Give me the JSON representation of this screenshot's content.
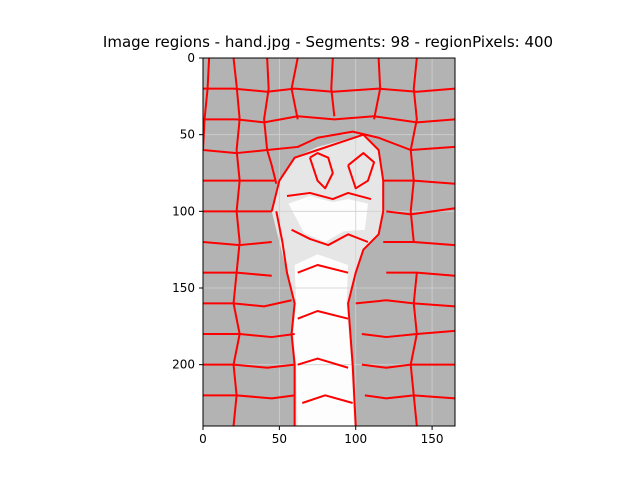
{
  "figure": {
    "title": "Image regions - hand.jpg - Segments: 98 - regionPixels: 400"
  },
  "chart_data": {
    "type": "heatmap",
    "title": "Image regions - hand.jpg - Segments: 98 - regionPixels: 400",
    "xlabel": "",
    "ylabel": "",
    "xlim": [
      0,
      165
    ],
    "ylim": [
      240,
      0
    ],
    "x_ticks": [
      "0",
      "50",
      "100",
      "150"
    ],
    "y_ticks": [
      "0",
      "50",
      "100",
      "150",
      "200"
    ],
    "grid": true,
    "colors": {
      "background_region": "#b3b3b3",
      "hand_region": "#e6e6e6",
      "bright_region": "#fdfdfd",
      "boundary": "#ff0000"
    },
    "boundaries": [
      [
        [
          4,
          0
        ],
        [
          3,
          20
        ],
        [
          1,
          40
        ],
        [
          0,
          60
        ]
      ],
      [
        [
          20,
          0
        ],
        [
          22,
          18
        ],
        [
          24,
          40
        ],
        [
          22,
          60
        ]
      ],
      [
        [
          42,
          0
        ],
        [
          43,
          20
        ],
        [
          40,
          40
        ],
        [
          42,
          60
        ]
      ],
      [
        [
          62,
          0
        ],
        [
          58,
          20
        ],
        [
          62,
          40
        ]
      ],
      [
        [
          85,
          0
        ],
        [
          84,
          20
        ],
        [
          86,
          38
        ]
      ],
      [
        [
          115,
          0
        ],
        [
          116,
          20
        ],
        [
          112,
          40
        ]
      ],
      [
        [
          140,
          0
        ],
        [
          138,
          20
        ],
        [
          140,
          40
        ],
        [
          136,
          60
        ]
      ],
      [
        [
          0,
          20
        ],
        [
          20,
          20
        ],
        [
          42,
          22
        ],
        [
          60,
          20
        ],
        [
          85,
          22
        ],
        [
          115,
          20
        ],
        [
          140,
          22
        ],
        [
          165,
          20
        ]
      ],
      [
        [
          0,
          40
        ],
        [
          22,
          40
        ],
        [
          40,
          42
        ],
        [
          62,
          38
        ],
        [
          86,
          40
        ],
        [
          112,
          38
        ],
        [
          140,
          42
        ],
        [
          165,
          40
        ]
      ],
      [
        [
          0,
          60
        ],
        [
          22,
          62
        ],
        [
          42,
          60
        ],
        [
          62,
          58
        ],
        [
          75,
          52
        ],
        [
          98,
          48
        ],
        [
          115,
          52
        ],
        [
          136,
          60
        ],
        [
          165,
          58
        ]
      ],
      [
        [
          22,
          60
        ],
        [
          24,
          80
        ],
        [
          22,
          100
        ],
        [
          24,
          120
        ],
        [
          22,
          140
        ]
      ],
      [
        [
          42,
          60
        ],
        [
          45,
          70
        ],
        [
          48,
          82
        ]
      ],
      [
        [
          136,
          60
        ],
        [
          138,
          80
        ],
        [
          136,
          100
        ],
        [
          138,
          120
        ]
      ],
      [
        [
          0,
          80
        ],
        [
          24,
          80
        ],
        [
          48,
          80
        ]
      ],
      [
        [
          118,
          80
        ],
        [
          138,
          80
        ],
        [
          165,
          82
        ]
      ],
      [
        [
          0,
          100
        ],
        [
          22,
          100
        ],
        [
          45,
          100
        ]
      ],
      [
        [
          120,
          100
        ],
        [
          136,
          102
        ],
        [
          165,
          98
        ]
      ],
      [
        [
          0,
          120
        ],
        [
          24,
          122
        ],
        [
          45,
          120
        ]
      ],
      [
        [
          118,
          120
        ],
        [
          138,
          120
        ],
        [
          165,
          122
        ]
      ],
      [
        [
          0,
          140
        ],
        [
          22,
          140
        ],
        [
          45,
          142
        ]
      ],
      [
        [
          120,
          140
        ],
        [
          140,
          140
        ],
        [
          165,
          142
        ]
      ],
      [
        [
          22,
          140
        ],
        [
          20,
          160
        ],
        [
          24,
          180
        ],
        [
          20,
          200
        ],
        [
          22,
          220
        ],
        [
          20,
          240
        ]
      ],
      [
        [
          140,
          140
        ],
        [
          138,
          160
        ],
        [
          140,
          180
        ],
        [
          136,
          200
        ],
        [
          138,
          220
        ],
        [
          140,
          240
        ]
      ],
      [
        [
          0,
          160
        ],
        [
          20,
          160
        ],
        [
          40,
          162
        ],
        [
          58,
          158
        ]
      ],
      [
        [
          100,
          160
        ],
        [
          120,
          158
        ],
        [
          138,
          160
        ],
        [
          165,
          162
        ]
      ],
      [
        [
          0,
          180
        ],
        [
          24,
          180
        ],
        [
          45,
          182
        ],
        [
          60,
          180
        ]
      ],
      [
        [
          104,
          180
        ],
        [
          120,
          182
        ],
        [
          140,
          180
        ],
        [
          165,
          178
        ]
      ],
      [
        [
          0,
          200
        ],
        [
          20,
          200
        ],
        [
          42,
          202
        ],
        [
          60,
          200
        ]
      ],
      [
        [
          104,
          200
        ],
        [
          120,
          202
        ],
        [
          136,
          200
        ],
        [
          165,
          200
        ]
      ],
      [
        [
          0,
          220
        ],
        [
          22,
          220
        ],
        [
          45,
          222
        ],
        [
          60,
          220
        ]
      ],
      [
        [
          106,
          220
        ],
        [
          120,
          222
        ],
        [
          138,
          220
        ],
        [
          165,
          222
        ]
      ],
      [
        [
          45,
          100
        ],
        [
          50,
          80
        ],
        [
          60,
          65
        ],
        [
          75,
          60
        ],
        [
          90,
          55
        ],
        [
          105,
          50
        ],
        [
          115,
          60
        ],
        [
          118,
          80
        ],
        [
          118,
          100
        ],
        [
          115,
          115
        ],
        [
          105,
          125
        ],
        [
          100,
          140
        ],
        [
          95,
          160
        ],
        [
          98,
          200
        ],
        [
          100,
          240
        ]
      ],
      [
        [
          48,
          100
        ],
        [
          52,
          120
        ],
        [
          55,
          140
        ],
        [
          60,
          160
        ],
        [
          58,
          180
        ],
        [
          60,
          200
        ],
        [
          60,
          240
        ]
      ],
      [
        [
          55,
          90
        ],
        [
          70,
          88
        ],
        [
          85,
          92
        ],
        [
          95,
          88
        ],
        [
          110,
          92
        ]
      ],
      [
        [
          58,
          112
        ],
        [
          70,
          118
        ],
        [
          82,
          122
        ],
        [
          95,
          115
        ],
        [
          108,
          120
        ]
      ],
      [
        [
          70,
          65
        ],
        [
          75,
          80
        ],
        [
          80,
          85
        ],
        [
          85,
          75
        ],
        [
          82,
          65
        ],
        [
          75,
          62
        ],
        [
          70,
          65
        ]
      ],
      [
        [
          95,
          70
        ],
        [
          100,
          85
        ],
        [
          108,
          80
        ],
        [
          112,
          68
        ],
        [
          105,
          62
        ],
        [
          95,
          70
        ]
      ],
      [
        [
          62,
          140
        ],
        [
          75,
          135
        ],
        [
          95,
          140
        ]
      ],
      [
        [
          62,
          170
        ],
        [
          75,
          165
        ],
        [
          95,
          170
        ]
      ],
      [
        [
          62,
          200
        ],
        [
          75,
          196
        ],
        [
          95,
          202
        ]
      ],
      [
        [
          65,
          225
        ],
        [
          80,
          220
        ],
        [
          98,
          225
        ]
      ]
    ]
  }
}
